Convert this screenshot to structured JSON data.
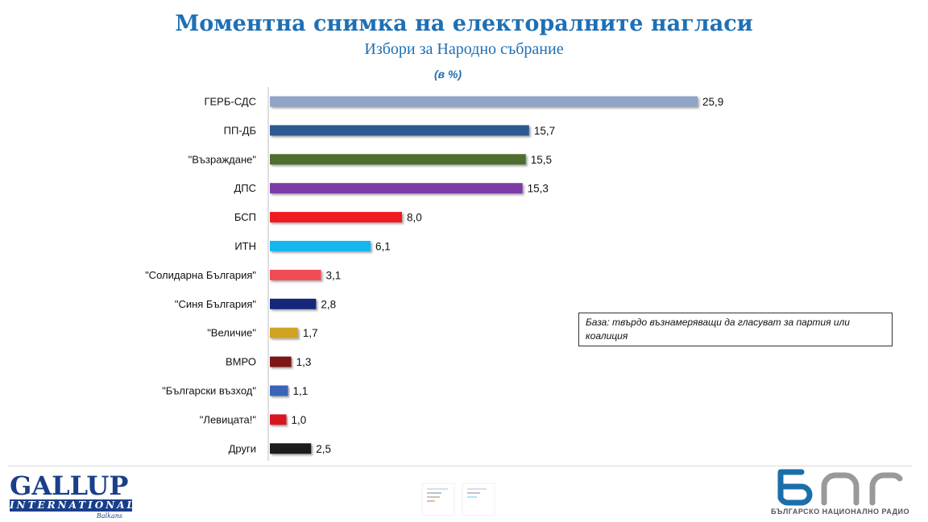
{
  "header": {
    "title": "Моментна снимка на електоралните нагласи",
    "subtitle": "Избори за Народно събрание",
    "unit": "(в %)"
  },
  "note": {
    "line1": "База: твърдо възнамеряващи да гласуват за партия или",
    "line2": "коалиция"
  },
  "footer": {
    "gallup_main": "GALLUP",
    "gallup_band": "INTERNATIONAL",
    "gallup_sub": "Balkans",
    "bnr_name": "БЪЛГАРСКО НАЦИОНАЛНО РАДИО"
  },
  "chart_data": {
    "type": "bar",
    "orientation": "horizontal",
    "title": "Моментна снимка на електоралните нагласи",
    "subtitle": "Избори за Народно събрание",
    "ylabel": "",
    "xlabel": "",
    "xlim": [
      0,
      26
    ],
    "grid": false,
    "legend": "none",
    "categories": [
      "ГЕРБ-СДС",
      "ПП-ДБ",
      "\"Възраждане\"",
      "ДПС",
      "БСП",
      "ИТН",
      "\"Солидарна България\"",
      "\"Синя България\"",
      "\"Величие\"",
      "ВМРО",
      "\"Български възход\"",
      "\"Левицата!\"",
      "Други"
    ],
    "values": [
      25.9,
      15.7,
      15.5,
      15.3,
      8.0,
      6.1,
      3.1,
      2.8,
      1.7,
      1.3,
      1.1,
      1.0,
      2.5
    ],
    "value_labels": [
      "25,9",
      "15,7",
      "15,5",
      "15,3",
      "8,0",
      "6,1",
      "3,1",
      "2,8",
      "1,7",
      "1,3",
      "1,1",
      "1,0",
      "2,5"
    ],
    "colors": [
      "#8fa4c6",
      "#2b5a8f",
      "#4e6e2e",
      "#7b3aa8",
      "#ee1b24",
      "#18b6ef",
      "#f04c52",
      "#14277a",
      "#d1a320",
      "#7d1416",
      "#3b64b7",
      "#d71920",
      "#1a1a1a"
    ]
  }
}
